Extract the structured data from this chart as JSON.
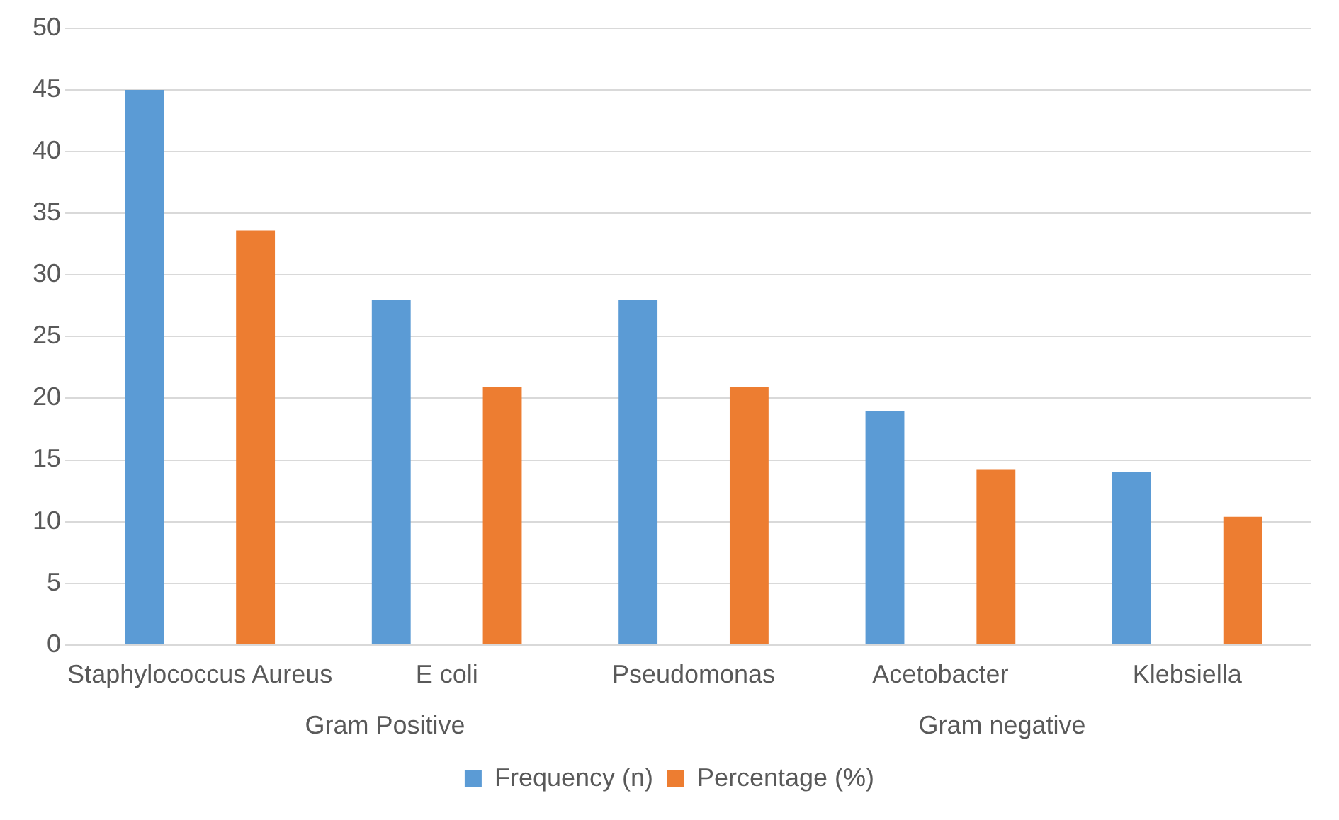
{
  "chart_data": {
    "type": "bar",
    "categories": [
      "Staphylococcus Aureus",
      "E coli",
      "Pseudomonas",
      "Acetobacter",
      "Klebsiella"
    ],
    "series": [
      {
        "name": "Frequency (n)",
        "color": "#5b9bd5",
        "values": [
          45,
          28,
          28,
          19,
          14
        ]
      },
      {
        "name": "Percentage (%)",
        "color": "#ed7d31",
        "values": [
          33.6,
          20.9,
          20.9,
          14.2,
          10.4
        ]
      }
    ],
    "annotations": [
      "Gram Positive",
      "Gram negative"
    ],
    "ylim": [
      0,
      50
    ],
    "yticks": [
      0,
      5,
      10,
      15,
      20,
      25,
      30,
      35,
      40,
      45,
      50
    ],
    "grid": "y",
    "legend": "bottom"
  }
}
